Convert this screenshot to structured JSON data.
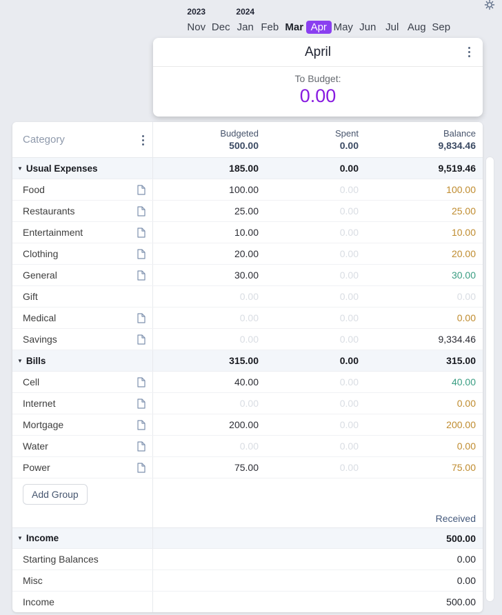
{
  "theme": {
    "accent": "#8a3ff0",
    "purple": "#8719e0",
    "amber": "#bf8b2e",
    "green": "#399d82"
  },
  "month_nav": {
    "years": [
      {
        "label": "2023",
        "col": 0
      },
      {
        "label": "2024",
        "col": 2
      }
    ],
    "months": [
      {
        "label": "Nov",
        "state": "normal"
      },
      {
        "label": "Dec",
        "state": "normal"
      },
      {
        "label": "Jan",
        "state": "normal"
      },
      {
        "label": "Feb",
        "state": "normal"
      },
      {
        "label": "Mar",
        "state": "bold"
      },
      {
        "label": "Apr",
        "state": "selected"
      },
      {
        "label": "May",
        "state": "normal"
      },
      {
        "label": "Jun",
        "state": "normal"
      },
      {
        "label": "Jul",
        "state": "normal"
      },
      {
        "label": "Aug",
        "state": "normal"
      },
      {
        "label": "Sep",
        "state": "normal"
      }
    ]
  },
  "month_card": {
    "title": "April",
    "to_budget_label": "To Budget:",
    "to_budget_value": "0.00"
  },
  "table": {
    "header": {
      "category_label": "Category",
      "columns": [
        {
          "label": "Budgeted",
          "value": "500.00"
        },
        {
          "label": "Spent",
          "value": "0.00"
        },
        {
          "label": "Balance",
          "value": "9,834.46"
        }
      ]
    },
    "groups": [
      {
        "name": "Usual Expenses",
        "budgeted": "185.00",
        "spent": "0.00",
        "balance": "9,519.46",
        "rows": [
          {
            "name": "Food",
            "has_note": true,
            "budgeted": "100.00",
            "budgeted_style": "dark",
            "spent": "0.00",
            "balance": "100.00",
            "balance_style": "amber"
          },
          {
            "name": "Restaurants",
            "has_note": true,
            "budgeted": "25.00",
            "budgeted_style": "dark",
            "spent": "0.00",
            "balance": "25.00",
            "balance_style": "amber"
          },
          {
            "name": "Entertainment",
            "has_note": true,
            "budgeted": "10.00",
            "budgeted_style": "dark",
            "spent": "0.00",
            "balance": "10.00",
            "balance_style": "amber"
          },
          {
            "name": "Clothing",
            "has_note": true,
            "budgeted": "20.00",
            "budgeted_style": "dark",
            "spent": "0.00",
            "balance": "20.00",
            "balance_style": "amber"
          },
          {
            "name": "General",
            "has_note": true,
            "budgeted": "30.00",
            "budgeted_style": "dark",
            "spent": "0.00",
            "balance": "30.00",
            "balance_style": "green"
          },
          {
            "name": "Gift",
            "has_note": false,
            "budgeted": "0.00",
            "budgeted_style": "faint",
            "spent": "0.00",
            "balance": "0.00",
            "balance_style": "faint"
          },
          {
            "name": "Medical",
            "has_note": true,
            "budgeted": "0.00",
            "budgeted_style": "faint",
            "spent": "0.00",
            "balance": "0.00",
            "balance_style": "amber"
          },
          {
            "name": "Savings",
            "has_note": true,
            "budgeted": "0.00",
            "budgeted_style": "faint",
            "spent": "0.00",
            "balance": "9,334.46",
            "balance_style": "dark"
          }
        ]
      },
      {
        "name": "Bills",
        "budgeted": "315.00",
        "spent": "0.00",
        "balance": "315.00",
        "rows": [
          {
            "name": "Cell",
            "has_note": true,
            "budgeted": "40.00",
            "budgeted_style": "dark",
            "spent": "0.00",
            "balance": "40.00",
            "balance_style": "green"
          },
          {
            "name": "Internet",
            "has_note": true,
            "budgeted": "0.00",
            "budgeted_style": "faint",
            "spent": "0.00",
            "balance": "0.00",
            "balance_style": "amber"
          },
          {
            "name": "Mortgage",
            "has_note": true,
            "budgeted": "200.00",
            "budgeted_style": "dark",
            "spent": "0.00",
            "balance": "200.00",
            "balance_style": "amber"
          },
          {
            "name": "Water",
            "has_note": true,
            "budgeted": "0.00",
            "budgeted_style": "faint",
            "spent": "0.00",
            "balance": "0.00",
            "balance_style": "amber"
          },
          {
            "name": "Power",
            "has_note": true,
            "budgeted": "75.00",
            "budgeted_style": "dark",
            "spent": "0.00",
            "balance": "75.00",
            "balance_style": "amber"
          }
        ]
      }
    ],
    "add_group_label": "Add Group",
    "income": {
      "received_label": "Received",
      "group_name": "Income",
      "total": "500.00",
      "rows": [
        {
          "name": "Starting Balances",
          "value": "0.00"
        },
        {
          "name": "Misc",
          "value": "0.00"
        },
        {
          "name": "Income",
          "value": "500.00"
        }
      ]
    }
  }
}
